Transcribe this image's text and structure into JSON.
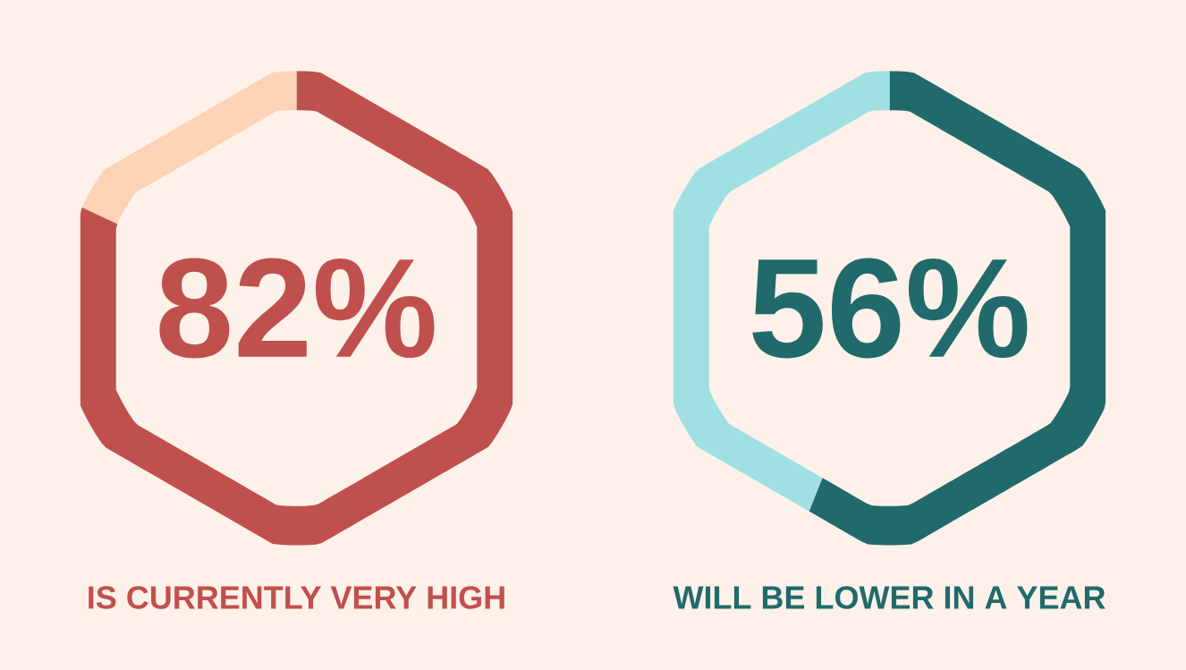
{
  "chart_data": [
    {
      "type": "donut",
      "categories": [
        null,
        null
      ],
      "values": [
        82,
        18
      ],
      "colors": [
        "#c0504d",
        "#fdd3b6"
      ],
      "value_labels": [
        "82%",
        null
      ],
      "annotations": [
        "IS CURRENTLY VERY HIGH"
      ]
    },
    {
      "type": "donut",
      "categories": [
        null,
        null
      ],
      "values": [
        56,
        44
      ],
      "colors": [
        "#216a6b",
        "#a0e0e2"
      ],
      "value_labels": [
        "56%",
        null
      ],
      "annotations": [
        "WILL BE LOWER IN A YEAR"
      ]
    }
  ]
}
